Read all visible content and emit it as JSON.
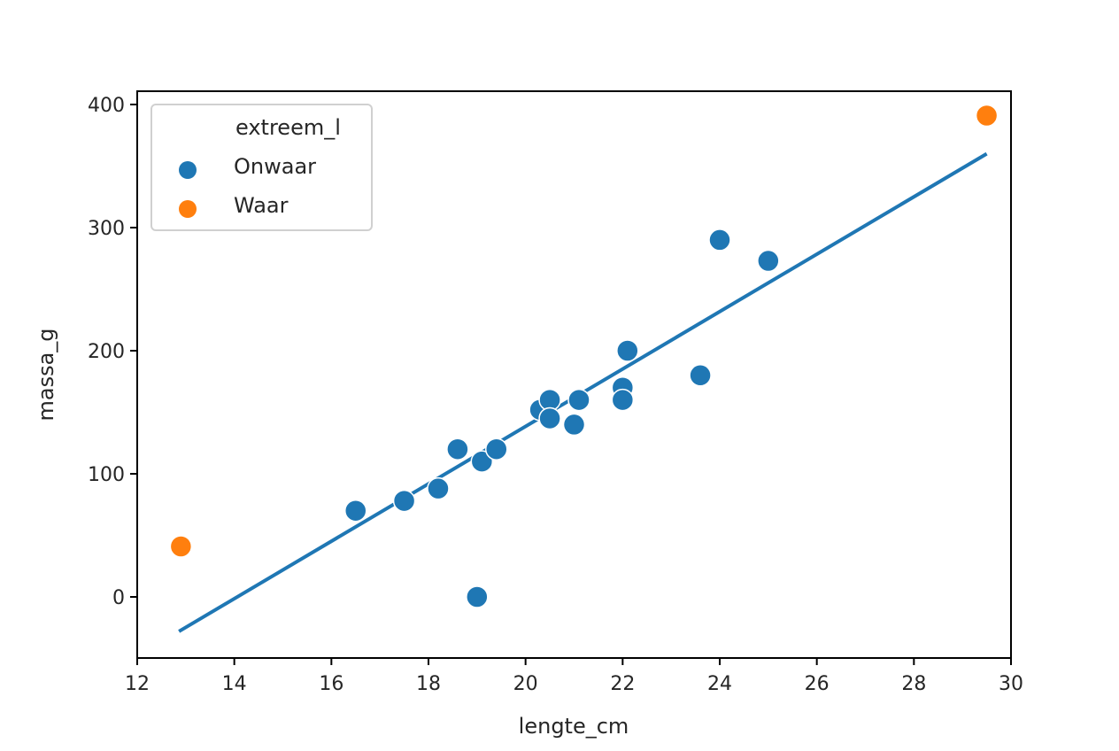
{
  "chart_data": {
    "type": "scatter",
    "title": "",
    "xlabel": "lengte_cm",
    "ylabel": "massa_g",
    "xlim": [
      12,
      30
    ],
    "ylim": [
      -50,
      410
    ],
    "xticks": [
      12,
      14,
      16,
      18,
      20,
      22,
      24,
      26,
      28,
      30
    ],
    "yticks": [
      0,
      100,
      200,
      300,
      400
    ],
    "grid": false,
    "legend": {
      "title": "extreem_l",
      "position": "upper left",
      "entries": [
        {
          "label": "Onwaar",
          "color": "#1f77b4"
        },
        {
          "label": "Waar",
          "color": "#ff7f0e"
        }
      ]
    },
    "series": [
      {
        "name": "Onwaar",
        "color": "#1f77b4",
        "points": [
          {
            "x": 16.5,
            "y": 70
          },
          {
            "x": 17.5,
            "y": 78
          },
          {
            "x": 18.2,
            "y": 88
          },
          {
            "x": 18.6,
            "y": 120
          },
          {
            "x": 19.0,
            "y": 0
          },
          {
            "x": 19.1,
            "y": 110
          },
          {
            "x": 19.4,
            "y": 120
          },
          {
            "x": 20.3,
            "y": 152
          },
          {
            "x": 20.5,
            "y": 160
          },
          {
            "x": 20.5,
            "y": 145
          },
          {
            "x": 21.0,
            "y": 140
          },
          {
            "x": 21.1,
            "y": 160
          },
          {
            "x": 22.0,
            "y": 170
          },
          {
            "x": 22.0,
            "y": 160
          },
          {
            "x": 22.1,
            "y": 200
          },
          {
            "x": 23.6,
            "y": 180
          },
          {
            "x": 24.0,
            "y": 290
          },
          {
            "x": 25.0,
            "y": 273
          }
        ]
      },
      {
        "name": "Waar",
        "color": "#ff7f0e",
        "points": [
          {
            "x": 12.9,
            "y": 41
          },
          {
            "x": 29.5,
            "y": 391
          }
        ]
      }
    ],
    "regression_line": {
      "color": "#1f77b4",
      "x": [
        12.86,
        29.5
      ],
      "y": [
        -28,
        360
      ]
    }
  }
}
